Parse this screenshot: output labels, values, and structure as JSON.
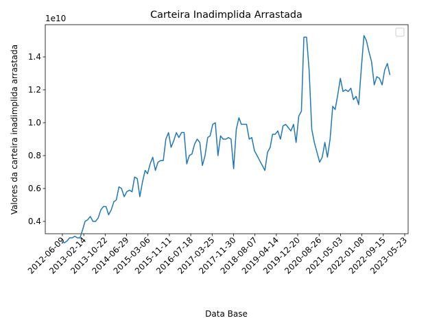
{
  "chart_data": {
    "type": "line",
    "title": "Carteira Inadimplida Arrastada",
    "x_label": "Data Base",
    "y_label": "Valores da carteira inadimplida arrastada",
    "y_offset_label": "1e10",
    "x": [
      "2012-06-01",
      "2012-07-01",
      "2012-08-01",
      "2012-09-01",
      "2012-10-01",
      "2012-11-01",
      "2012-12-01",
      "2013-01-01",
      "2013-02-01",
      "2013-03-01",
      "2013-04-01",
      "2013-05-01",
      "2013-06-01",
      "2013-07-01",
      "2013-08-01",
      "2013-09-01",
      "2013-10-01",
      "2013-11-01",
      "2013-12-01",
      "2014-01-01",
      "2014-02-01",
      "2014-03-01",
      "2014-04-01",
      "2014-05-01",
      "2014-06-01",
      "2014-07-01",
      "2014-08-01",
      "2014-09-01",
      "2014-10-01",
      "2014-11-01",
      "2014-12-01",
      "2015-01-01",
      "2015-02-01",
      "2015-03-01",
      "2015-04-01",
      "2015-05-01",
      "2015-06-01",
      "2015-07-01",
      "2015-08-01",
      "2015-09-01",
      "2015-10-01",
      "2015-11-01",
      "2015-12-01",
      "2016-01-01",
      "2016-02-01",
      "2016-03-01",
      "2016-04-01",
      "2016-05-01",
      "2016-06-01",
      "2016-07-01",
      "2016-08-01",
      "2016-09-01",
      "2016-10-01",
      "2016-11-01",
      "2016-12-01",
      "2017-01-01",
      "2017-02-01",
      "2017-03-01",
      "2017-04-01",
      "2017-05-01",
      "2017-06-01",
      "2017-07-01",
      "2017-08-01",
      "2017-09-01",
      "2017-10-01",
      "2017-11-01",
      "2017-12-01",
      "2018-01-01",
      "2018-02-01",
      "2018-03-01",
      "2018-04-01",
      "2018-05-01",
      "2018-06-01",
      "2018-07-01",
      "2018-08-01",
      "2018-09-01",
      "2018-10-01",
      "2018-11-01",
      "2018-12-01",
      "2019-01-01",
      "2019-02-01",
      "2019-03-01",
      "2019-04-01",
      "2019-05-01",
      "2019-06-01",
      "2019-07-01",
      "2019-08-01",
      "2019-09-01",
      "2019-10-01",
      "2019-11-01",
      "2019-12-01",
      "2020-01-01",
      "2020-02-01",
      "2020-03-01",
      "2020-04-01",
      "2020-05-01",
      "2020-06-01",
      "2020-07-01",
      "2020-08-01",
      "2020-09-01",
      "2020-10-01",
      "2020-11-01",
      "2020-12-01",
      "2021-01-01",
      "2021-02-01",
      "2021-03-01",
      "2021-04-01",
      "2021-05-01",
      "2021-06-01",
      "2021-07-01",
      "2021-08-01",
      "2021-09-01",
      "2021-10-01",
      "2021-11-01",
      "2021-12-01",
      "2022-01-01",
      "2022-02-01",
      "2022-03-01",
      "2022-04-01",
      "2022-05-01",
      "2022-06-01",
      "2022-07-01",
      "2022-08-01",
      "2022-09-01",
      "2022-10-01",
      "2022-11-01",
      "2022-12-01"
    ],
    "series": [
      {
        "color": "#1f77b4",
        "values": [
          0.28,
          0.27,
          0.28,
          0.3,
          0.3,
          0.31,
          0.3,
          0.3,
          0.35,
          0.4,
          0.41,
          0.43,
          0.4,
          0.4,
          0.42,
          0.47,
          0.49,
          0.49,
          0.44,
          0.47,
          0.52,
          0.53,
          0.61,
          0.6,
          0.55,
          0.58,
          0.59,
          0.58,
          0.67,
          0.66,
          0.55,
          0.64,
          0.71,
          0.69,
          0.75,
          0.79,
          0.71,
          0.76,
          0.77,
          0.77,
          0.9,
          0.94,
          0.85,
          0.89,
          0.94,
          0.91,
          0.94,
          0.94,
          0.75,
          0.8,
          0.81,
          0.87,
          0.9,
          0.88,
          0.74,
          0.8,
          0.91,
          0.92,
          0.99,
          1.0,
          0.8,
          0.92,
          0.9,
          0.9,
          0.91,
          0.9,
          0.72,
          0.96,
          1.03,
          0.99,
          0.99,
          0.99,
          0.9,
          0.91,
          0.83,
          0.8,
          0.77,
          0.74,
          0.71,
          0.82,
          0.85,
          0.93,
          0.93,
          0.95,
          0.9,
          0.98,
          0.99,
          0.97,
          0.95,
          0.99,
          0.88,
          1.04,
          1.07,
          1.52,
          1.52,
          1.32,
          0.96,
          0.88,
          0.82,
          0.76,
          0.79,
          0.88,
          0.79,
          0.9,
          1.1,
          1.08,
          1.17,
          1.27,
          1.19,
          1.2,
          1.19,
          1.21,
          1.14,
          1.16,
          1.11,
          1.33,
          1.53,
          1.5,
          1.43,
          1.37,
          1.23,
          1.28,
          1.27,
          1.23,
          1.32,
          1.36,
          1.29
        ]
      }
    ],
    "xlim": [
      "2011-11-22",
      "2023-07-02"
    ],
    "xticks": [
      "2012-06-09",
      "2013-02-14",
      "2013-10-22",
      "2014-06-29",
      "2015-03-06",
      "2015-11-11",
      "2016-07-18",
      "2017-03-25",
      "2017-11-30",
      "2018-08-07",
      "2019-04-14",
      "2019-12-20",
      "2020-08-26",
      "2021-05-03",
      "2022-01-08",
      "2022-09-15",
      "2023-05-23"
    ],
    "ylim": [
      0.325,
      1.596
    ],
    "yticks": [
      0.4,
      0.6,
      0.8,
      1.0,
      1.2,
      1.4
    ],
    "grid": false
  }
}
